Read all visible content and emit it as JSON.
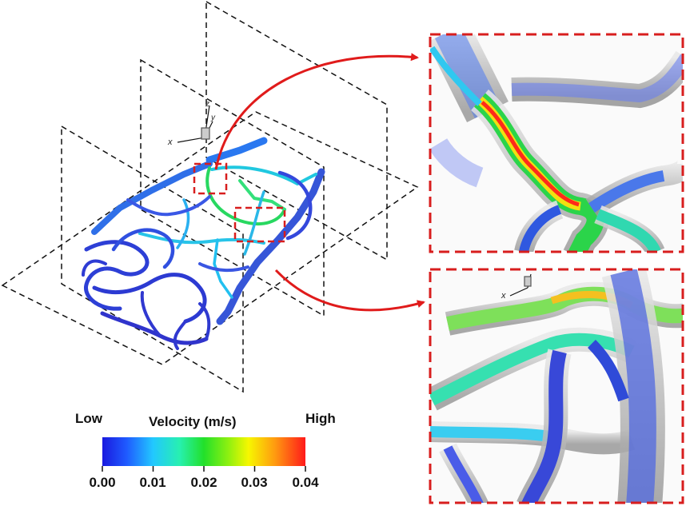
{
  "colorbar": {
    "title": "Velocity (m/s)",
    "low_label": "Low",
    "high_label": "High",
    "ticks": [
      "0.00",
      "0.01",
      "0.02",
      "0.03",
      "0.04"
    ],
    "colors": [
      "#1a1adf",
      "#1f5bff",
      "#22c8ff",
      "#27f0b0",
      "#22e02a",
      "#8ef010",
      "#f7f700",
      "#ff9a10",
      "#ff1a1a"
    ]
  },
  "axes_triad": {
    "main": {
      "x": "x",
      "y": "y",
      "z": "z"
    },
    "inset_bottom": {
      "x": "x"
    }
  },
  "colors": {
    "callout": "#e01b1b",
    "frame": "#d81e1e",
    "planes": "#111111"
  }
}
